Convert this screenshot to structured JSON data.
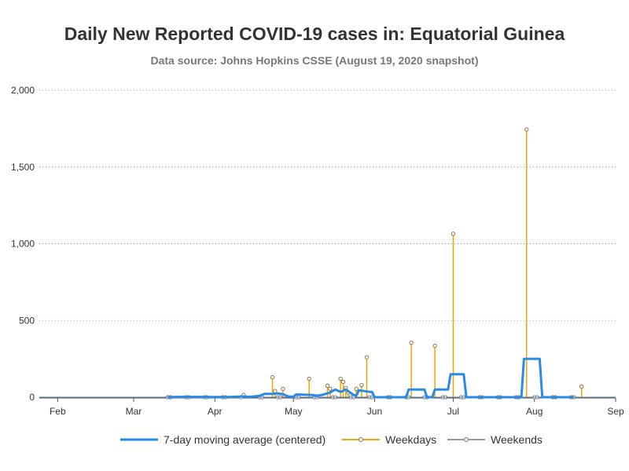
{
  "chart_data": {
    "type": "line",
    "title": "Daily New Reported COVID-19 cases in: Equatorial Guinea",
    "subtitle": "Data source: Johns Hopkins CSSE (August 19, 2020 snapshot)",
    "xlabel": "",
    "ylabel": "",
    "x_range": [
      "2020-01-25",
      "2020-09-01"
    ],
    "ylim": [
      0,
      2000
    ],
    "y_ticks": [
      0,
      500,
      1000,
      1500,
      2000
    ],
    "y_tick_labels": [
      "0",
      "500",
      "1,000",
      "1,500",
      "2,000"
    ],
    "x_ticks": [
      "2020-02-01",
      "2020-03-01",
      "2020-04-01",
      "2020-05-01",
      "2020-06-01",
      "2020-07-01",
      "2020-08-01",
      "2020-09-01"
    ],
    "x_tick_labels": [
      "Feb",
      "Mar",
      "Apr",
      "May",
      "Jun",
      "Jul",
      "Aug",
      "Sep"
    ],
    "grid": "horizontal dotted",
    "legend_position": "bottom",
    "series": [
      {
        "name": "7-day moving average (centered)",
        "kind": "line",
        "color": "#2b8ae6",
        "points": [
          [
            "2020-03-14",
            0
          ],
          [
            "2020-03-17",
            2
          ],
          [
            "2020-03-24",
            2
          ],
          [
            "2020-03-31",
            1
          ],
          [
            "2020-04-07",
            2
          ],
          [
            "2020-04-12",
            5
          ],
          [
            "2020-04-14",
            2
          ],
          [
            "2020-04-18",
            8
          ],
          [
            "2020-04-20",
            22
          ],
          [
            "2020-04-23",
            22
          ],
          [
            "2020-04-25",
            25
          ],
          [
            "2020-04-27",
            20
          ],
          [
            "2020-04-29",
            5
          ],
          [
            "2020-05-01",
            3
          ],
          [
            "2020-05-02",
            18
          ],
          [
            "2020-05-08",
            15
          ],
          [
            "2020-05-10",
            10
          ],
          [
            "2020-05-12",
            15
          ],
          [
            "2020-05-15",
            30
          ],
          [
            "2020-05-17",
            50
          ],
          [
            "2020-05-19",
            35
          ],
          [
            "2020-05-21",
            50
          ],
          [
            "2020-05-24",
            15
          ],
          [
            "2020-05-25",
            10
          ],
          [
            "2020-05-26",
            45
          ],
          [
            "2020-05-28",
            40
          ],
          [
            "2020-05-30",
            35
          ],
          [
            "2020-05-31",
            35
          ],
          [
            "2020-06-01",
            0
          ],
          [
            "2020-06-13",
            0
          ],
          [
            "2020-06-14",
            50
          ],
          [
            "2020-06-20",
            50
          ],
          [
            "2020-06-21",
            0
          ],
          [
            "2020-06-23",
            0
          ],
          [
            "2020-06-24",
            50
          ],
          [
            "2020-06-29",
            50
          ],
          [
            "2020-06-30",
            150
          ],
          [
            "2020-07-05",
            150
          ],
          [
            "2020-07-06",
            0
          ],
          [
            "2020-07-27",
            0
          ],
          [
            "2020-07-28",
            250
          ],
          [
            "2020-08-03",
            250
          ],
          [
            "2020-08-04",
            0
          ],
          [
            "2020-08-16",
            0
          ]
        ]
      },
      {
        "name": "Weekdays",
        "kind": "spikes",
        "color": "#f4a300",
        "points": [
          [
            "2020-04-23",
            130
          ],
          [
            "2020-04-24",
            40
          ],
          [
            "2020-04-27",
            55
          ],
          [
            "2020-05-07",
            120
          ],
          [
            "2020-05-14",
            75
          ],
          [
            "2020-05-15",
            55
          ],
          [
            "2020-05-19",
            120
          ],
          [
            "2020-05-20",
            100
          ],
          [
            "2020-05-21",
            60
          ],
          [
            "2020-05-22",
            30
          ],
          [
            "2020-05-25",
            55
          ],
          [
            "2020-05-27",
            80
          ],
          [
            "2020-05-29",
            260
          ],
          [
            "2020-06-15",
            355
          ],
          [
            "2020-06-24",
            335
          ],
          [
            "2020-07-01",
            1065
          ],
          [
            "2020-07-29",
            1745
          ],
          [
            "2020-08-19",
            70
          ]
        ]
      },
      {
        "name": "Weekends",
        "kind": "spikes",
        "color": "#999999",
        "points": [
          [
            "2020-03-14",
            0
          ],
          [
            "2020-03-15",
            0
          ],
          [
            "2020-03-21",
            0
          ],
          [
            "2020-03-22",
            0
          ],
          [
            "2020-03-28",
            0
          ],
          [
            "2020-03-29",
            0
          ],
          [
            "2020-04-04",
            0
          ],
          [
            "2020-04-05",
            0
          ],
          [
            "2020-04-11",
            0
          ],
          [
            "2020-04-12",
            15
          ],
          [
            "2020-04-18",
            0
          ],
          [
            "2020-04-19",
            0
          ],
          [
            "2020-04-25",
            0
          ],
          [
            "2020-04-26",
            0
          ],
          [
            "2020-05-02",
            0
          ],
          [
            "2020-05-03",
            0
          ],
          [
            "2020-05-09",
            0
          ],
          [
            "2020-05-10",
            0
          ],
          [
            "2020-05-16",
            0
          ],
          [
            "2020-05-17",
            0
          ],
          [
            "2020-05-23",
            0
          ],
          [
            "2020-05-24",
            0
          ],
          [
            "2020-05-30",
            0
          ],
          [
            "2020-05-31",
            0
          ],
          [
            "2020-06-06",
            0
          ],
          [
            "2020-06-07",
            0
          ],
          [
            "2020-06-13",
            0
          ],
          [
            "2020-06-14",
            0
          ],
          [
            "2020-06-20",
            0
          ],
          [
            "2020-06-21",
            0
          ],
          [
            "2020-06-27",
            0
          ],
          [
            "2020-06-28",
            0
          ],
          [
            "2020-07-04",
            0
          ],
          [
            "2020-07-05",
            0
          ],
          [
            "2020-07-11",
            0
          ],
          [
            "2020-07-12",
            0
          ],
          [
            "2020-07-18",
            0
          ],
          [
            "2020-07-19",
            0
          ],
          [
            "2020-07-25",
            0
          ],
          [
            "2020-07-26",
            0
          ],
          [
            "2020-08-01",
            0
          ],
          [
            "2020-08-02",
            0
          ],
          [
            "2020-08-08",
            0
          ],
          [
            "2020-08-09",
            0
          ],
          [
            "2020-08-15",
            0
          ],
          [
            "2020-08-16",
            0
          ]
        ]
      }
    ]
  }
}
